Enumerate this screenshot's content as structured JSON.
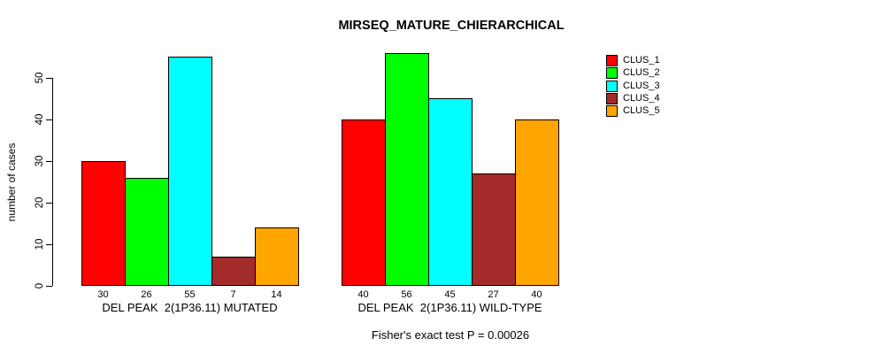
{
  "chart_data": {
    "type": "bar",
    "title": "MIRSEQ_MATURE_CHIERARCHICAL",
    "ylabel": "number of cases",
    "xlabel": "",
    "ylim": [
      0,
      56
    ],
    "yticks": [
      0,
      10,
      20,
      30,
      40,
      50
    ],
    "grid": false,
    "categories": [
      "DEL PEAK  2(1P36.11) MUTATED",
      "DEL PEAK  2(1P36.11) WILD-TYPE"
    ],
    "series": [
      {
        "name": "CLUS_1",
        "color": "#FF0000",
        "values": [
          30,
          40
        ]
      },
      {
        "name": "CLUS_2",
        "color": "#00FF00",
        "values": [
          26,
          56
        ]
      },
      {
        "name": "CLUS_3",
        "color": "#00FFFF",
        "values": [
          55,
          45
        ]
      },
      {
        "name": "CLUS_4",
        "color": "#A52A2A",
        "values": [
          7,
          27
        ]
      },
      {
        "name": "CLUS_5",
        "color": "#FFA500",
        "values": [
          14,
          40
        ]
      }
    ],
    "bar_value_labels": [
      [
        30,
        26,
        55,
        7,
        14
      ],
      [
        40,
        56,
        45,
        27,
        40
      ]
    ],
    "annotation": "Fisher's exact test P = 0.00026",
    "legend": {
      "position": "right",
      "entries": [
        "CLUS_1",
        "CLUS_2",
        "CLUS_3",
        "CLUS_4",
        "CLUS_5"
      ]
    },
    "axis_color": "#000000",
    "background_color": "#FFFFFF"
  }
}
